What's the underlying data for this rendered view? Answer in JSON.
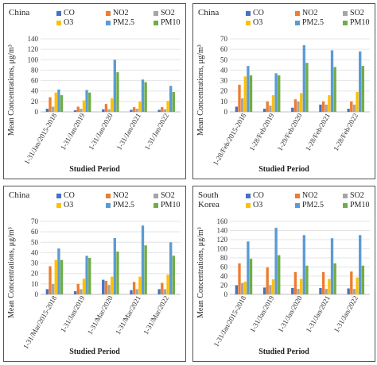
{
  "pollutants": [
    {
      "name": "CO",
      "color": "#4472c4"
    },
    {
      "name": "NO2",
      "color": "#ed7d31"
    },
    {
      "name": "SO2",
      "color": "#a5a5a5"
    },
    {
      "name": "O3",
      "color": "#ffc000"
    },
    {
      "name": "PM2.5",
      "color": "#5b9bd5"
    },
    {
      "name": "PM10",
      "color": "#70ad47"
    }
  ],
  "chart_data": [
    {
      "type": "bar",
      "region": "China",
      "ylabel": "Mean Concentrations, μg/m³",
      "xlabel": "Studied Period",
      "yticks": [
        "0",
        "20",
        "40",
        "60",
        "80",
        "100",
        "120",
        "140"
      ],
      "ylim": [
        0,
        140
      ],
      "categories": [
        "1-31/Jan/2015-2018",
        "1-31/Jan/2019",
        "1-31/Jan/2020",
        "1-31/Jan/2021",
        "1-31/Jan/2022"
      ],
      "series": [
        {
          "name": "CO",
          "values": [
            6,
            3,
            5,
            4,
            4
          ]
        },
        {
          "name": "NO2",
          "values": [
            28,
            10,
            15,
            9,
            9
          ]
        },
        {
          "name": "SO2",
          "values": [
            10,
            6,
            5,
            6,
            5
          ]
        },
        {
          "name": "O3",
          "values": [
            37,
            22,
            26,
            20,
            21
          ]
        },
        {
          "name": "PM2.5",
          "values": [
            43,
            42,
            100,
            62,
            50
          ]
        },
        {
          "name": "PM10",
          "values": [
            32,
            37,
            76,
            57,
            38
          ]
        }
      ],
      "legend_position": "top"
    },
    {
      "type": "bar",
      "region": "China",
      "ylabel": "Mean Concentrations, μg/m³",
      "xlabel": "Studied Period",
      "yticks": [
        "0",
        "10",
        "20",
        "30",
        "40",
        "50",
        "60",
        "70"
      ],
      "ylim": [
        0,
        70
      ],
      "categories": [
        "1-28/Feb/2015-2018",
        "1-28/Feb/2019",
        "1-29/Feb/2020",
        "1-28/Feb/2021",
        "1-28/Feb/2022"
      ],
      "series": [
        {
          "name": "CO",
          "values": [
            5,
            3,
            4,
            7,
            3
          ]
        },
        {
          "name": "NO2",
          "values": [
            26,
            10,
            12,
            10,
            10
          ]
        },
        {
          "name": "SO2",
          "values": [
            13,
            6,
            10,
            7,
            7
          ]
        },
        {
          "name": "O3",
          "values": [
            34,
            16,
            18,
            16,
            19
          ]
        },
        {
          "name": "PM2.5",
          "values": [
            44,
            37,
            64,
            59,
            58
          ]
        },
        {
          "name": "PM10",
          "values": [
            35,
            35,
            47,
            43,
            44
          ]
        }
      ],
      "legend_position": "top"
    },
    {
      "type": "bar",
      "region": "China",
      "ylabel": "Mean Concentrations, μg/m³",
      "xlabel": "Studied Period",
      "yticks": [
        "0",
        "10",
        "20",
        "30",
        "40",
        "50",
        "60",
        "70"
      ],
      "ylim": [
        0,
        70
      ],
      "categories": [
        "1-31/Mar/2015-2018",
        "1-31/Jan/2019",
        "1-31/Mar/2020",
        "1-31/Mar/2021",
        "1-31/Mar/2022"
      ],
      "series": [
        {
          "name": "CO",
          "values": [
            5,
            3,
            14,
            4,
            5
          ]
        },
        {
          "name": "NO2",
          "values": [
            27,
            10,
            13,
            12,
            11
          ]
        },
        {
          "name": "SO2",
          "values": [
            10,
            5,
            9,
            5,
            5
          ]
        },
        {
          "name": "O3",
          "values": [
            33,
            15,
            17,
            17,
            19
          ]
        },
        {
          "name": "PM2.5",
          "values": [
            44,
            37,
            54,
            66,
            50
          ]
        },
        {
          "name": "PM10",
          "values": [
            33,
            35,
            41,
            47,
            37
          ]
        }
      ],
      "legend_position": "top"
    },
    {
      "type": "bar",
      "region": "South\nKorea",
      "ylabel": "Mean Concentrations, μg/m³",
      "xlabel": "Studied Period",
      "yticks": [
        "0",
        "20",
        "40",
        "60",
        "80",
        "100",
        "120",
        "140",
        "160"
      ],
      "ylim": [
        0,
        160
      ],
      "categories": [
        "1-31/Jan/2015-2018",
        "1-31/Jan/2019",
        "1-31/Jan/2020",
        "1-31/Jan/2021",
        "1-31/Jan/2022"
      ],
      "series": [
        {
          "name": "CO",
          "values": [
            20,
            15,
            14,
            14,
            13
          ]
        },
        {
          "name": "NO2",
          "values": [
            68,
            59,
            49,
            49,
            50
          ]
        },
        {
          "name": "SO2",
          "values": [
            25,
            20,
            12,
            12,
            12
          ]
        },
        {
          "name": "O3",
          "values": [
            28,
            33,
            34,
            34,
            37
          ]
        },
        {
          "name": "PM2.5",
          "values": [
            116,
            146,
            130,
            123,
            130
          ]
        },
        {
          "name": "PM10",
          "values": [
            78,
            86,
            63,
            68,
            63
          ]
        }
      ],
      "legend_position": "top"
    }
  ]
}
